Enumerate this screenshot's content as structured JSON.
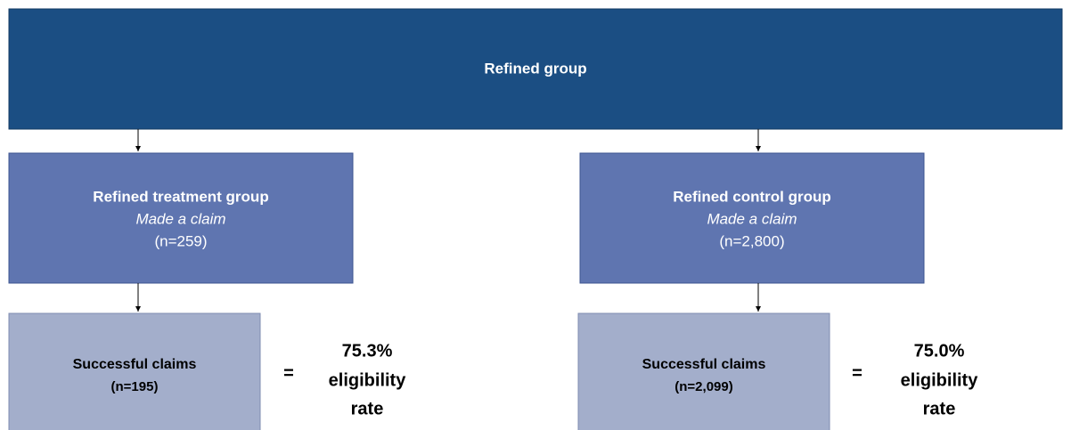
{
  "top": {
    "title": "Refined group"
  },
  "branches": [
    {
      "group": {
        "title": "Refined treatment group",
        "subtitle": "Made a claim",
        "count": "(n=259)"
      },
      "outcome": {
        "title": "Successful claims",
        "count": "(n=195)"
      },
      "equals": "=",
      "rate": [
        "75.3%",
        "eligibility",
        "rate"
      ]
    },
    {
      "group": {
        "title": "Refined control group",
        "subtitle": "Made a claim",
        "count": "(n=2,800)"
      },
      "outcome": {
        "title": "Successful claims",
        "count": "(n=2,099)"
      },
      "equals": "=",
      "rate": [
        "75.0%",
        "eligibility",
        "rate"
      ]
    }
  ]
}
